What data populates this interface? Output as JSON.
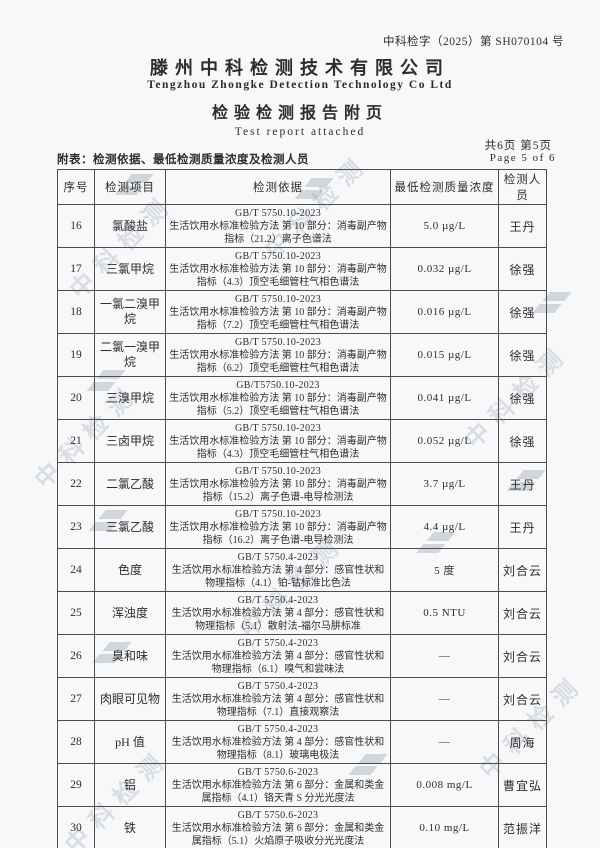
{
  "page": {
    "report_no": "中科检字（2025）第 SH070104 号",
    "company_cn": "滕州中科检测技术有限公司",
    "company_en": "Tengzhou Zhongke Detection Technology Co Ltd",
    "title_cn": "检验检测报告附页",
    "title_en": "Test report attached",
    "page_info_cn": "共6页 第5页",
    "page_info_en": "Page 5 of 6",
    "table_caption": "附表：检测依据、最低检测质量浓度及检测人员",
    "watermark_text": "中科检测",
    "watermark_logo_icon": "zhongke-chevron",
    "colors": {
      "paper": "#f7f8fa",
      "ink": "#2d2d2d",
      "table_border": "#4d4d4d",
      "watermark": "#96a0ac"
    }
  },
  "table": {
    "headers": [
      "序号",
      "检测项目",
      "检测依据",
      "最低检测质量浓度",
      "检测人员"
    ],
    "rows": [
      {
        "no": "16",
        "item": "氯酸盐",
        "standard": "GB/T 5750.10-2023",
        "method": "生活饮用水标准检验方法 第 10 部分：消毒副产物指标（21.2）离子色谱法",
        "value": "5.0 µg/L",
        "person": "王丹"
      },
      {
        "no": "17",
        "item": "三氯甲烷",
        "standard": "GB/T 5750.10-2023",
        "method": "生活饮用水标准检验方法 第 10 部分：消毒副产物指标（4.3）顶空毛细管柱气相色谱法",
        "value": "0.032 µg/L",
        "person": "徐强"
      },
      {
        "no": "18",
        "item": "一氯二溴甲烷",
        "standard": "GB/T 5750.10-2023",
        "method": "生活饮用水标准检验方法 第 10 部分：消毒副产物指标（7.2）顶空毛细管柱气相色谱法",
        "value": "0.016 µg/L",
        "person": "徐强"
      },
      {
        "no": "19",
        "item": "二氯一溴甲烷",
        "standard": "GB/T 5750.10-2023",
        "method": "生活饮用水标准检验方法 第 10 部分：消毒副产物指标（6.2）顶空毛细管柱气相色谱法",
        "value": "0.015 µg/L",
        "person": "徐强"
      },
      {
        "no": "20",
        "item": "三溴甲烷",
        "standard": "GB/T5750.10-2023",
        "method": "生活饮用水标准检验方法 第 10 部分：消毒副产物指标（5.2）顶空毛细管柱气相色谱法",
        "value": "0.041 µg/L",
        "person": "徐强"
      },
      {
        "no": "21",
        "item": "三卤甲烷",
        "standard": "GB/T 5750.10-2023",
        "method": "生活饮用水标准检验方法 第 10 部分：消毒副产物指标（4.3）顶空毛细管柱气相色谱法",
        "value": "0.052 µg/L",
        "person": "徐强"
      },
      {
        "no": "22",
        "item": "二氯乙酸",
        "standard": "GB/T 5750.10-2023",
        "method": "生活饮用水标准检验方法 第 10 部分：消毒副产物指标（15.2）离子色谱-电导检测法",
        "value": "3.7 µg/L",
        "person": "王丹"
      },
      {
        "no": "23",
        "item": "三氯乙酸",
        "standard": "GB/T 5750.10-2023",
        "method": "生活饮用水标准检验方法 第 10 部分：消毒副产物指标（16.2）离子色谱-电导检测法",
        "value": "4.4 µg/L",
        "person": "王丹"
      },
      {
        "no": "24",
        "item": "色度",
        "standard": "GB/T 5750.4-2023",
        "method": "生活饮用水标准检验方法 第 4 部分：感官性状和物理指标（4.1）铂-钴标准比色法",
        "value": "5 度",
        "person": "刘合云"
      },
      {
        "no": "25",
        "item": "浑浊度",
        "standard": "GB/T 5750.4-2023",
        "method": "生活饮用水标准检验方法 第 4 部分：感官性状和物理指标（5.1）散射法-福尔马肼标准",
        "value": "0.5 NTU",
        "person": "刘合云"
      },
      {
        "no": "26",
        "item": "臭和味",
        "standard": "GB/T 5750.4-2023",
        "method": "生活饮用水标准检验方法 第 4 部分：感官性状和物理指标（6.1）嗅气和尝味法",
        "value": "—",
        "person": "刘合云"
      },
      {
        "no": "27",
        "item": "肉眼可见物",
        "standard": "GB/T 5750.4-2023",
        "method": "生活饮用水标准检验方法 第 4 部分：感官性状和物理指标（7.1）直接观察法",
        "value": "—",
        "person": "刘合云"
      },
      {
        "no": "28",
        "item": "pH 值",
        "standard": "GB/T 5750.4-2023",
        "method": "生活饮用水标准检验方法 第 4 部分：感官性状和物理指标（8.1）玻璃电极法",
        "value": "—",
        "person": "周海"
      },
      {
        "no": "29",
        "item": "铝",
        "standard": "GB/T 5750.6-2023",
        "method": "生活饮用水标准检验方法 第 6 部分：金属和类金属指标（4.1）铬天青 S 分光光度法",
        "value": "0.008 mg/L",
        "person": "曹宜弘"
      },
      {
        "no": "30",
        "item": "铁",
        "standard": "GB/T 5750.6-2023",
        "method": "生活饮用水标准检验方法 第 6 部分：金属和类金属指标（5.1）火焰原子吸收分光光度法",
        "value": "0.10 mg/L",
        "person": "范振洋"
      }
    ]
  }
}
